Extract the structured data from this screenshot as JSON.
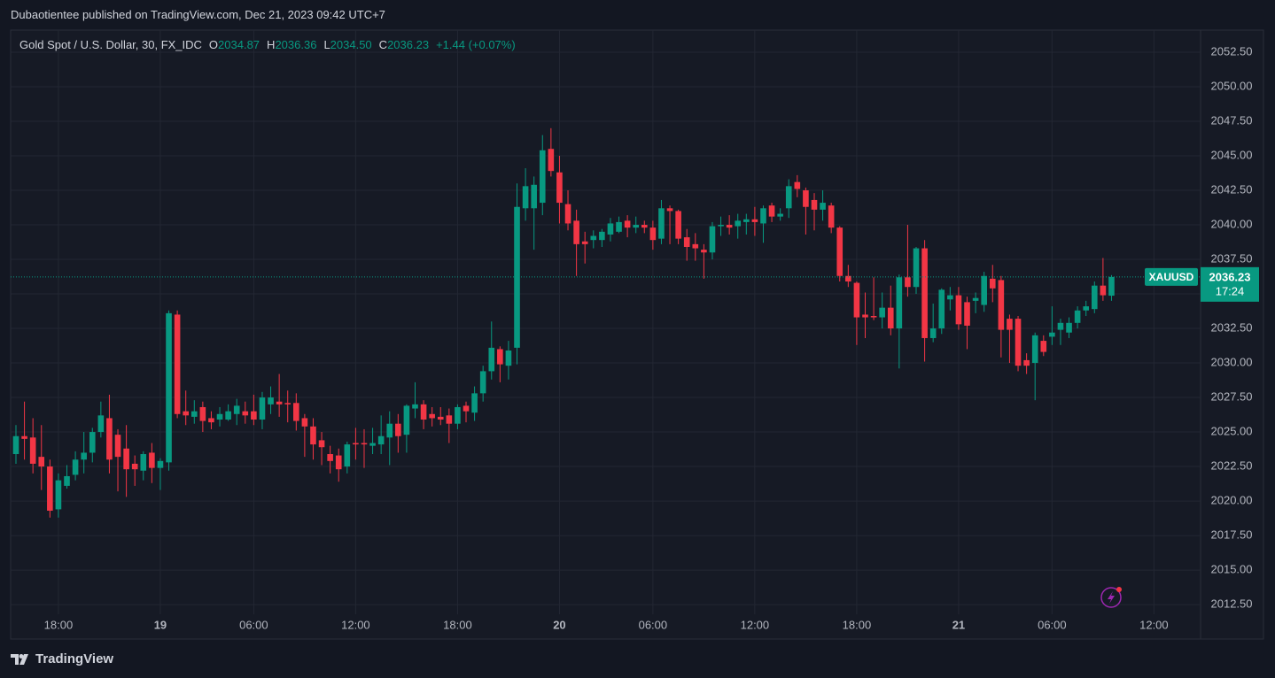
{
  "header": {
    "published": "Dubaotientee published on TradingView.com, Dec 21, 2023 09:42 UTC+7"
  },
  "legend": {
    "symbol": "Gold Spot / U.S. Dollar, 30, FX_IDC",
    "o_label": "O",
    "o": "2034.87",
    "h_label": "H",
    "h": "2036.36",
    "l_label": "L",
    "l": "2034.50",
    "c_label": "C",
    "c": "2036.23",
    "change": "+1.44 (+0.07%)"
  },
  "price_tag": {
    "symbol": "XAUUSD",
    "price": "2036.23",
    "countdown": "17:24"
  },
  "footer": {
    "brand": "TradingView"
  },
  "chart_data": {
    "type": "candlestick",
    "up_color": "#089981",
    "down_color": "#f23645",
    "grid": true,
    "ylim": [
      2011.8,
      2054
    ],
    "yticks": [
      {
        "value": 2012.5,
        "label": "2012.50"
      },
      {
        "value": 2015,
        "label": "2015.00"
      },
      {
        "value": 2017.5,
        "label": "2017.50"
      },
      {
        "value": 2020,
        "label": "2020.00"
      },
      {
        "value": 2022.5,
        "label": "2022.50"
      },
      {
        "value": 2025,
        "label": "2025.00"
      },
      {
        "value": 2027.5,
        "label": "2027.50"
      },
      {
        "value": 2030,
        "label": "2030.00"
      },
      {
        "value": 2032.5,
        "label": "2032.50"
      },
      {
        "value": 2035,
        "label": "2035.00"
      },
      {
        "value": 2037.5,
        "label": "2037.50"
      },
      {
        "value": 2040,
        "label": "2040.00"
      },
      {
        "value": 2042.5,
        "label": "2042.50"
      },
      {
        "value": 2045,
        "label": "2045.00"
      },
      {
        "value": 2047.5,
        "label": "2047.50"
      },
      {
        "value": 2050,
        "label": "2050.00"
      },
      {
        "value": 2052.5,
        "label": "2052.50"
      }
    ],
    "categories": [
      null,
      null,
      null,
      null,
      null,
      "18:00",
      null,
      null,
      null,
      null,
      null,
      null,
      null,
      null,
      null,
      null,
      null,
      "19",
      null,
      null,
      null,
      null,
      null,
      null,
      null,
      null,
      null,
      null,
      "06:00",
      null,
      null,
      null,
      null,
      null,
      null,
      null,
      null,
      null,
      null,
      null,
      "12:00",
      null,
      null,
      null,
      null,
      null,
      null,
      null,
      null,
      null,
      null,
      null,
      "18:00",
      null,
      null,
      null,
      null,
      null,
      null,
      null,
      null,
      null,
      null,
      null,
      "20",
      null,
      null,
      null,
      null,
      null,
      null,
      null,
      null,
      null,
      null,
      "06:00",
      null,
      null,
      null,
      null,
      null,
      null,
      null,
      null,
      null,
      null,
      null,
      "12:00",
      null,
      null,
      null,
      null,
      null,
      null,
      null,
      null,
      null,
      null,
      null,
      "18:00",
      null,
      null,
      null,
      null,
      null,
      null,
      null,
      null,
      null,
      null,
      null,
      "21",
      null,
      null,
      null,
      null,
      null,
      null,
      null,
      null,
      null,
      null,
      "06:00",
      null,
      null,
      null,
      null,
      null,
      null,
      null,
      null,
      null,
      null,
      null,
      "12:00"
    ],
    "open": [
      2023.4,
      2024.7,
      2024.6,
      2023.2,
      2022.5,
      2019.4,
      2021.1,
      2021.9,
      2023.0,
      2023.5,
      2025,
      2026,
      2024.8,
      2023.8,
      2022.7,
      2022.2,
      2023.5,
      2022.4,
      2022.8,
      2033.5,
      2026.5,
      2026.1,
      2026.8,
      2026,
      2025.9,
      2025.9,
      2026.3,
      2026.5,
      2026.5,
      2025.9,
      2027,
      2027.2,
      2027.1,
      2027.1,
      2026,
      2025.4,
      2024.4,
      2023.4,
      2023.3,
      2022.5,
      2024.2,
      2024.2,
      2024,
      2024.1,
      2024.6,
      2025.6,
      2024.8,
      2026.7,
      2027,
      2026.3,
      2026.1,
      2026.2,
      2025.6,
      2026.9,
      2026.4,
      2027.8,
      2029.4,
      2031,
      2029.8,
      2031.1,
      2041.2,
      2041.2,
      2041.6,
      2045.5,
      2043.8,
      2041.5,
      2040.3,
      2038.8,
      2038.9,
      2038.9,
      2039.3,
      2039.5,
      2040.3,
      2039.8,
      2040,
      2039.8,
      2039,
      2041.2,
      2041,
      2039.1,
      2038.6,
      2038.2,
      2038,
      2039.9,
      2040,
      2039.9,
      2040.2,
      2040.4,
      2040.1,
      2041.4,
      2040.6,
      2041.2,
      2043.1,
      2042.5,
      2041.8,
      2041.1,
      2041.4,
      2039.8,
      2036.3,
      2035.8,
      2033.5,
      2033.4,
      2033.3,
      2034,
      2032.5,
      2036.2,
      2035.5,
      2038.3,
      2031.8,
      2032.5,
      2034.6,
      2034.9,
      2034.4,
      2034.5,
      2034.2,
      2036.1,
      2036,
      2033.2,
      2033.2,
      2030.2,
      2030,
      2031.6,
      2031.9,
      2032.4,
      2032.2,
      2032.9,
      2033.8,
      2033.9,
      2035.6,
      2034.87,
      null,
      null,
      null,
      null,
      null
    ],
    "high": [
      2025.5,
      2027.2,
      2026,
      2025.5,
      2023,
      2022,
      2022.6,
      2023.6,
      2025,
      2025.3,
      2027.2,
      2027.7,
      2025.2,
      2025.5,
      2023.3,
      2023.6,
      2024.2,
      2023.1,
      2033.8,
      2033.8,
      2028,
      2027.3,
      2027.2,
      2026.5,
      2026.8,
      2027,
      2027.4,
      2027.2,
      2027.7,
      2027.9,
      2028.3,
      2029.2,
      2028,
      2027.8,
      2026.3,
      2026,
      2025,
      2024,
      2023.8,
      2024.3,
      2025.3,
      2025.2,
      2025.3,
      2026.2,
      2026.5,
      2026.3,
      2027,
      2028.6,
      2027.3,
      2026.8,
      2026.8,
      2026.7,
      2027,
      2027.2,
      2028.3,
      2029.8,
      2033,
      2031.2,
      2031.6,
      2043,
      2044.1,
      2043.5,
      2046.5,
      2047,
      2045,
      2042.5,
      2041.1,
      2039.5,
      2039.6,
      2039.7,
      2040.5,
      2040.6,
      2040.7,
      2040.6,
      2040.3,
      2040.3,
      2041.8,
      2041.4,
      2041.1,
      2039.7,
      2039.4,
      2038.6,
      2040.2,
      2040.6,
      2040.7,
      2040.8,
      2040.8,
      2041.3,
      2041.4,
      2041.6,
      2041.2,
      2043.3,
      2043.6,
      2042.7,
      2042.3,
      2042.5,
      2041.6,
      2039.9,
      2037.1,
      2035.9,
      2035.1,
      2036.2,
      2035.1,
      2035.6,
      2036.4,
      2040,
      2038.4,
      2038.9,
      2034.3,
      2035.4,
      2035.5,
      2035.5,
      2034.8,
      2035.1,
      2036.6,
      2037.1,
      2036.3,
      2033.5,
      2033.4,
      2030.7,
      2032.2,
      2032,
      2034.1,
      2033.2,
      2033.3,
      2034.1,
      2034.5,
      2035.9,
      2037.6,
      2036.36,
      null,
      null,
      null,
      null,
      null
    ],
    "low": [
      2022.7,
      2023,
      2022,
      2020.8,
      2018.8,
      2018.8,
      2020.9,
      2021.5,
      2022,
      2022.8,
      2024.6,
      2022,
      2020.7,
      2020.3,
      2021.1,
      2021.5,
      2021.3,
      2020.8,
      2022.2,
      2026,
      2025.5,
      2025.6,
      2025,
      2025.2,
      2025.4,
      2025.8,
      2025.5,
      2025.6,
      2025.5,
      2025.2,
      2026.3,
      2026.1,
      2025.7,
      2025.1,
      2023.2,
      2023,
      2022.6,
      2022,
      2021.4,
      2022,
      2023,
      2022.4,
      2023.4,
      2023.4,
      2022.6,
      2023.5,
      2023.5,
      2026,
      2025.2,
      2025.4,
      2025.5,
      2024.2,
      2025.2,
      2025.7,
      2025.8,
      2027.2,
      2028.8,
      2028.6,
      2028.8,
      2029.9,
      2040.3,
      2038.2,
      2040.7,
      2043.5,
      2040.1,
      2039.6,
      2036.3,
      2037.2,
      2038.3,
      2038.4,
      2038.8,
      2039.4,
      2039.1,
      2039.4,
      2039.4,
      2038.2,
      2038.6,
      2038.6,
      2038.6,
      2037.4,
      2037.4,
      2036.1,
      2037.5,
      2039.2,
      2039.3,
      2039,
      2039.3,
      2039.2,
      2038.7,
      2040.2,
      2040.3,
      2040.5,
      2042,
      2039.3,
      2039.6,
      2040.3,
      2039.4,
      2035.9,
      2035.5,
      2031.3,
      2031.8,
      2033.1,
      2032.5,
      2032,
      2029.6,
      2034.8,
      2035,
      2030.1,
      2031.5,
      2032.1,
      2033.8,
      2032.4,
      2031,
      2033.6,
      2033.7,
      2034.4,
      2030.4,
      2030,
      2029.4,
      2029.2,
      2027.3,
      2030.5,
      2031.3,
      2031.3,
      2031.8,
      2032.5,
      2033.4,
      2033.6,
      2034.5,
      2034.5,
      null,
      null,
      null,
      null,
      null
    ],
    "close": [
      2024.7,
      2024.5,
      2022.7,
      2022.5,
      2019.3,
      2021.5,
      2021.8,
      2023,
      2023.5,
      2025,
      2026.2,
      2023,
      2023.2,
      2022.3,
      2022.3,
      2023.4,
      2022.4,
      2022.9,
      2033.6,
      2026.3,
      2026.2,
      2026.5,
      2025.8,
      2025.7,
      2026.3,
      2026.5,
      2026.9,
      2026.2,
      2025.9,
      2027.5,
      2027.5,
      2027,
      2027,
      2025.8,
      2025.4,
      2024.1,
      2023.9,
      2022.9,
      2022.3,
      2024.1,
      2024.1,
      2024.1,
      2024.2,
      2024.7,
      2025.6,
      2024.7,
      2026.9,
      2027,
      2025.9,
      2026,
      2025.9,
      2025.6,
      2026.8,
      2026.5,
      2027.8,
      2029.4,
      2031.1,
      2029.9,
      2030.9,
      2041.3,
      2042.8,
      2042.9,
      2045.4,
      2043.9,
      2041.6,
      2040.1,
      2038.6,
      2038.6,
      2039.2,
      2039.5,
      2040.1,
      2040.2,
      2039.8,
      2040,
      2039.8,
      2038.9,
      2041.2,
      2041,
      2039,
      2038.4,
      2038.3,
      2038,
      2039.9,
      2040,
      2039.8,
      2040.3,
      2040.4,
      2040.2,
      2041.2,
      2040.6,
      2040.8,
      2042.8,
      2042.6,
      2041.3,
      2041.1,
      2041.6,
      2039.8,
      2036.3,
      2035.9,
      2033.3,
      2033.3,
      2033.3,
      2034,
      2032.5,
      2036.2,
      2035.5,
      2038.3,
      2031.8,
      2032.5,
      2035.3,
      2034.9,
      2032.8,
      2032.7,
      2034.7,
      2036.3,
      2035.4,
      2032.4,
      2032.4,
      2029.8,
      2029.8,
      2032,
      2030.8,
      2032.2,
      2032.9,
      2032.9,
      2033.8,
      2034.1,
      2035.6,
      2034.9,
      2036.23,
      null,
      null,
      null,
      null,
      null
    ]
  }
}
